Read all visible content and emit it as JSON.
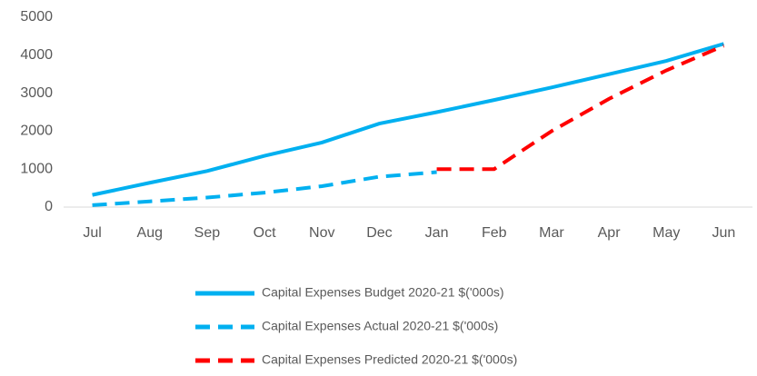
{
  "chart_data": {
    "type": "line",
    "categories": [
      "Jul",
      "Aug",
      "Sep",
      "Oct",
      "Nov",
      "Dec",
      "Jan",
      "Feb",
      "Mar",
      "Apr",
      "May",
      "Jun"
    ],
    "series": [
      {
        "name": "Capital Expenses Budget 2020-21 $('000s)",
        "color": "#00b0f0",
        "dashed": false,
        "values": [
          320,
          640,
          950,
          1350,
          1700,
          2200,
          2500,
          2820,
          3150,
          3500,
          3850,
          4300
        ]
      },
      {
        "name": "Capital Expenses Actual 2020-21 $('000s)",
        "color": "#00b0f0",
        "dashed": true,
        "values": [
          50,
          150,
          250,
          380,
          550,
          800,
          920,
          null,
          null,
          null,
          null,
          null
        ]
      },
      {
        "name": "Capital Expenses Predicted 2020-21 $('000s)",
        "color": "#ff0000",
        "dashed": true,
        "values": [
          null,
          null,
          null,
          null,
          null,
          null,
          1000,
          1000,
          2000,
          2850,
          3600,
          4250
        ]
      }
    ],
    "ylim": [
      0,
      5000
    ],
    "yticks": [
      0,
      1000,
      2000,
      3000,
      4000,
      5000
    ],
    "grid": false
  }
}
